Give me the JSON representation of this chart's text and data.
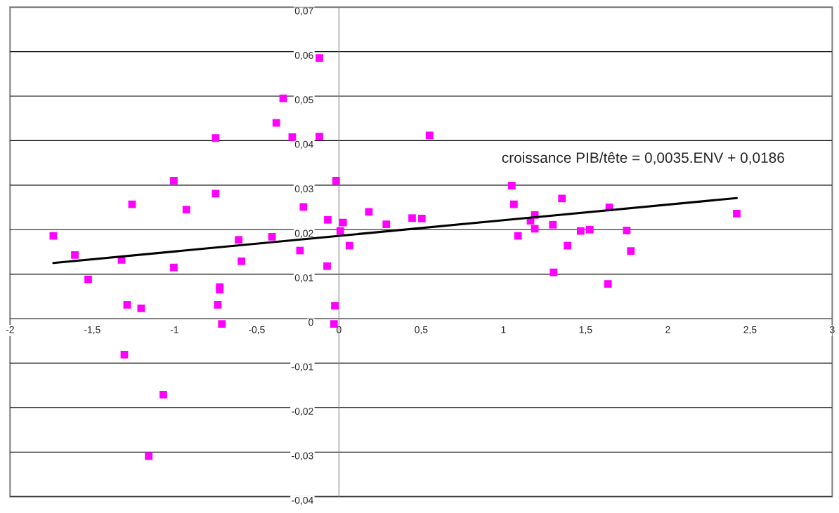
{
  "chart_data": {
    "type": "scatter",
    "marker": "square",
    "grid": "y",
    "annotations": [
      "croissance PIB/tête = 0,0035.ENV + 0,0186"
    ],
    "xlim": [
      -2,
      3
    ],
    "xticks": [
      {
        "value": -2,
        "label": "-2"
      },
      {
        "value": -1.5,
        "label": "-1,5"
      },
      {
        "value": -1,
        "label": "-1"
      },
      {
        "value": -0.5,
        "label": "-0,5"
      },
      {
        "value": 0,
        "label": "0"
      },
      {
        "value": 0.5,
        "label": "0,5"
      },
      {
        "value": 1,
        "label": "1"
      },
      {
        "value": 1.5,
        "label": "1,5"
      },
      {
        "value": 2,
        "label": "2"
      },
      {
        "value": 2.5,
        "label": "2,5"
      },
      {
        "value": 3,
        "label": "3"
      }
    ],
    "ylim": [
      -0.04,
      0.07
    ],
    "yticks": [
      {
        "value": -0.04,
        "label": "-0,04"
      },
      {
        "value": -0.03,
        "label": "-0,03"
      },
      {
        "value": -0.02,
        "label": "-0,02"
      },
      {
        "value": -0.01,
        "label": "-0,01"
      },
      {
        "value": 0,
        "label": "0"
      },
      {
        "value": 0.01,
        "label": "0,01"
      },
      {
        "value": 0.02,
        "label": "0,02"
      },
      {
        "value": 0.03,
        "label": "0,03"
      },
      {
        "value": 0.04,
        "label": "0,04"
      },
      {
        "value": 0.05,
        "label": "0,05"
      },
      {
        "value": 0.06,
        "label": "0,06"
      },
      {
        "value": 0.07,
        "label": "0,07"
      }
    ],
    "series": [
      {
        "color": "#ff00ff",
        "x": [
          -1.737,
          -1.606,
          -1.525,
          -1.322,
          -1.288,
          -1.305,
          -1.258,
          -1.203,
          -1.157,
          -1.068,
          -1.004,
          -1.004,
          -0.928,
          -0.75,
          -0.75,
          -0.737,
          -0.725,
          -0.725,
          -0.712,
          -0.61,
          -0.593,
          -0.407,
          -0.381,
          -0.339,
          -0.284,
          -0.237,
          -0.216,
          -0.119,
          -0.119,
          -0.072,
          -0.068,
          -0.025,
          -0.03,
          -0.017,
          0.008,
          0.025,
          0.064,
          0.182,
          0.288,
          0.445,
          0.504,
          0.551,
          1.051,
          1.064,
          1.089,
          1.165,
          1.191,
          1.191,
          1.301,
          1.305,
          1.356,
          1.39,
          1.47,
          1.525,
          1.636,
          1.644,
          1.75,
          1.775,
          2.419
        ],
        "values": [
          0.0186,
          0.0143,
          0.0088,
          0.0132,
          0.0031,
          -0.0081,
          0.0257,
          0.0023,
          -0.0309,
          -0.0171,
          0.031,
          0.0115,
          0.0245,
          0.0406,
          0.0281,
          0.0031,
          0.0071,
          0.0065,
          -0.0012,
          0.0177,
          0.0129,
          0.0184,
          0.044,
          0.0495,
          0.0408,
          0.0153,
          0.0251,
          0.0586,
          0.0409,
          0.0118,
          0.0222,
          0.0029,
          -0.0012,
          0.031,
          0.0197,
          0.0216,
          0.0164,
          0.024,
          0.0212,
          0.0226,
          0.0225,
          0.0412,
          0.0299,
          0.0257,
          0.0186,
          0.022,
          0.0233,
          0.0202,
          0.0211,
          0.0104,
          0.027,
          0.0164,
          0.0197,
          0.02,
          0.0078,
          0.025,
          0.0198,
          0.0152,
          0.0236
        ]
      },
      {
        "type": "line",
        "color": "#000000",
        "marker": "none",
        "x": [
          -1.737,
          2.419
        ],
        "values": [
          0.0125,
          0.0271
        ]
      }
    ]
  }
}
